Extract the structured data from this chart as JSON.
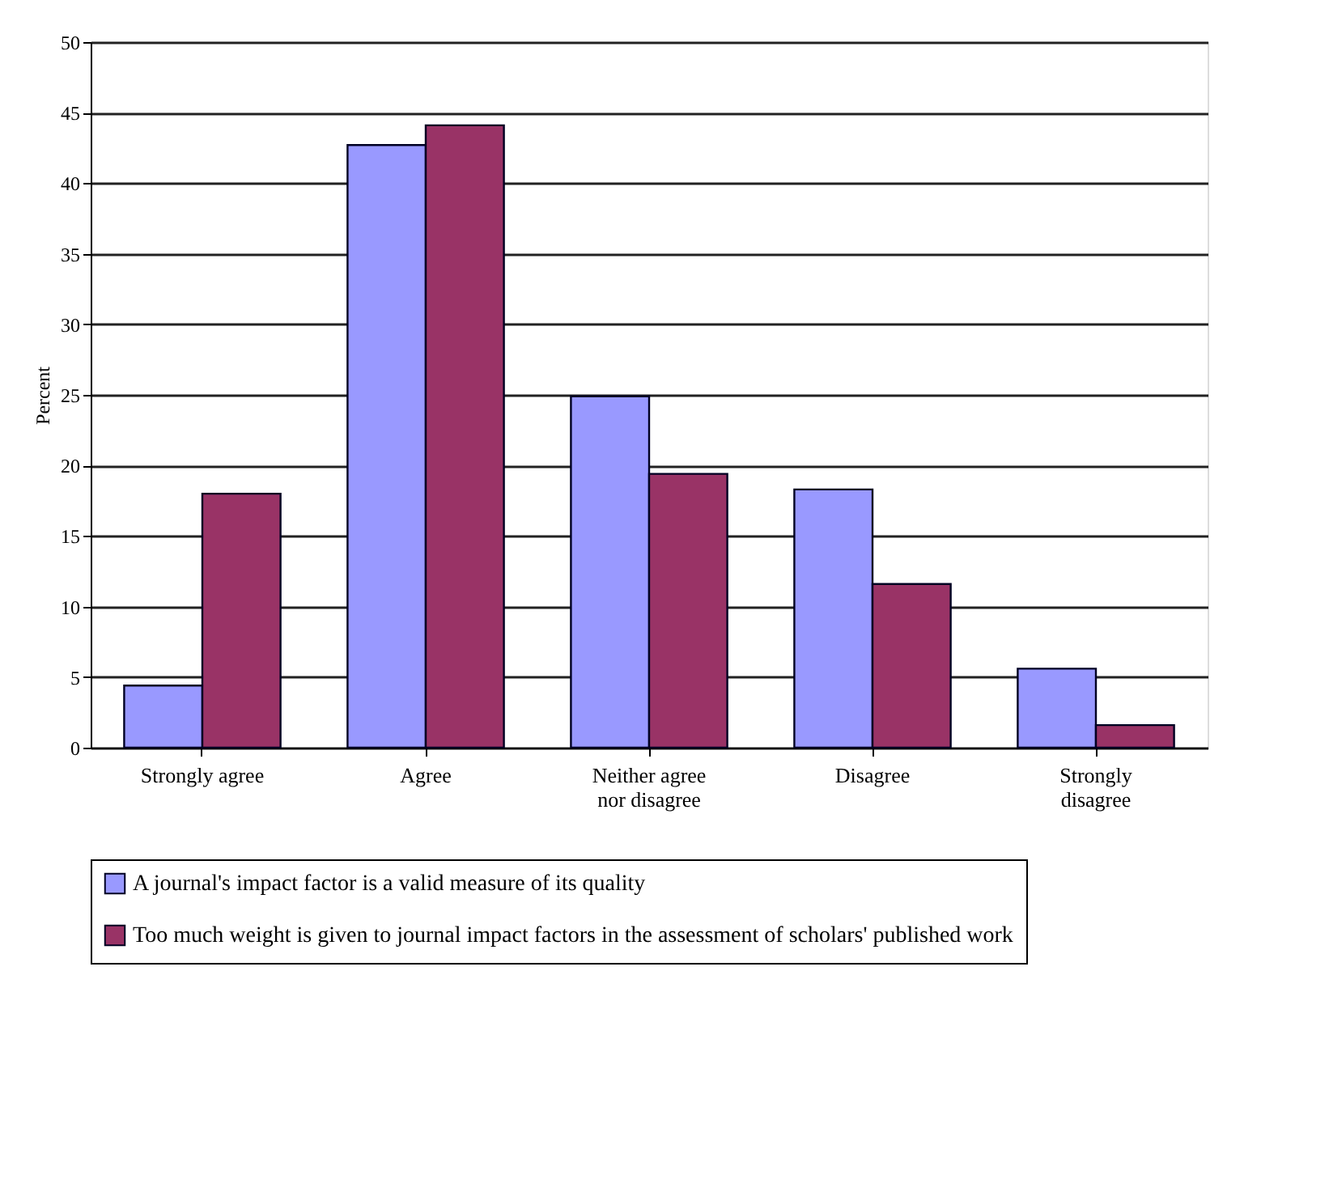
{
  "chart_data": {
    "type": "bar",
    "ylabel": "Percent",
    "categories": [
      "Strongly agree",
      "Agree",
      "Neither agree nor disagree",
      "Disagree",
      "Strongly disagree"
    ],
    "series": [
      {
        "name": "A journal's impact factor is a valid measure of its quality",
        "color": "#9999ff",
        "values": [
          4.4,
          42.7,
          24.9,
          18.3,
          5.6
        ]
      },
      {
        "name": "Too much weight is given to journal impact factors in the assessment of scholars' published work",
        "color": "#993366",
        "values": [
          18.0,
          44.1,
          19.4,
          11.6,
          1.6
        ]
      }
    ],
    "ylim": [
      0,
      50
    ],
    "yticks": [
      0,
      5,
      10,
      15,
      20,
      25,
      30,
      35,
      40,
      45,
      50
    ],
    "grid": "y",
    "legend": "bottom"
  }
}
